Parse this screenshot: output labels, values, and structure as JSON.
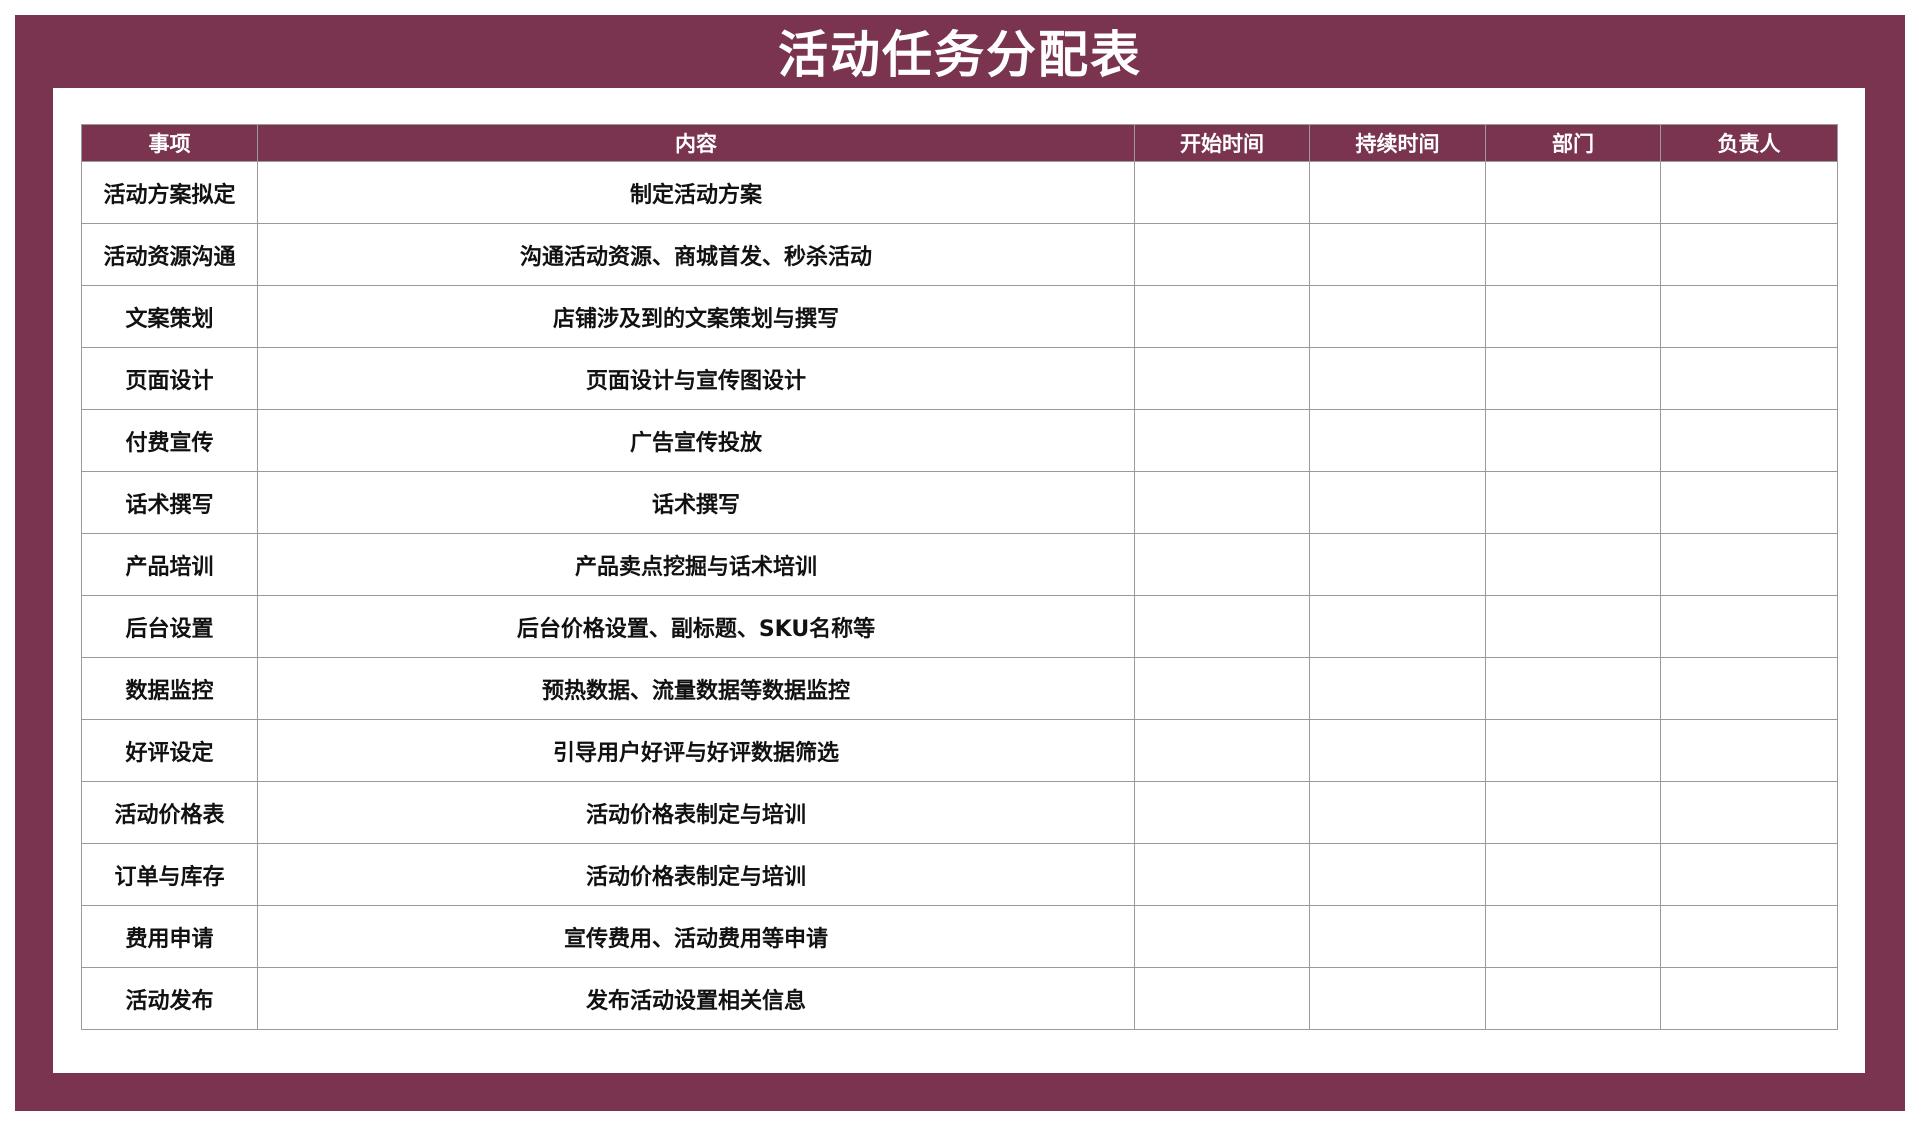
{
  "title": "活动任务分配表",
  "colors": {
    "accent": "#7a344f",
    "grid": "#9a9a9a"
  },
  "headers": [
    "事项",
    "内容",
    "开始时间",
    "持续时间",
    "部门",
    "负责人"
  ],
  "rows": [
    {
      "item": "活动方案拟定",
      "content": "制定活动方案"
    },
    {
      "item": "活动资源沟通",
      "content": "沟通活动资源、商城首发、秒杀活动"
    },
    {
      "item": "文案策划",
      "content": "店铺涉及到的文案策划与撰写"
    },
    {
      "item": "页面设计",
      "content": "页面设计与宣传图设计"
    },
    {
      "item": "付费宣传",
      "content": "广告宣传投放"
    },
    {
      "item": "话术撰写",
      "content": "话术撰写"
    },
    {
      "item": "产品培训",
      "content": "产品卖点挖掘与话术培训"
    },
    {
      "item": "后台设置",
      "content": "后台价格设置、副标题、SKU名称等"
    },
    {
      "item": "数据监控",
      "content": "预热数据、流量数据等数据监控"
    },
    {
      "item": "好评设定",
      "content": "引导用户好评与好评数据筛选"
    },
    {
      "item": "活动价格表",
      "content": "活动价格表制定与培训"
    },
    {
      "item": "订单与库存",
      "content": "活动价格表制定与培训"
    },
    {
      "item": "费用申请",
      "content": "宣传费用、活动费用等申请"
    },
    {
      "item": "活动发布",
      "content": "发布活动设置相关信息"
    }
  ]
}
